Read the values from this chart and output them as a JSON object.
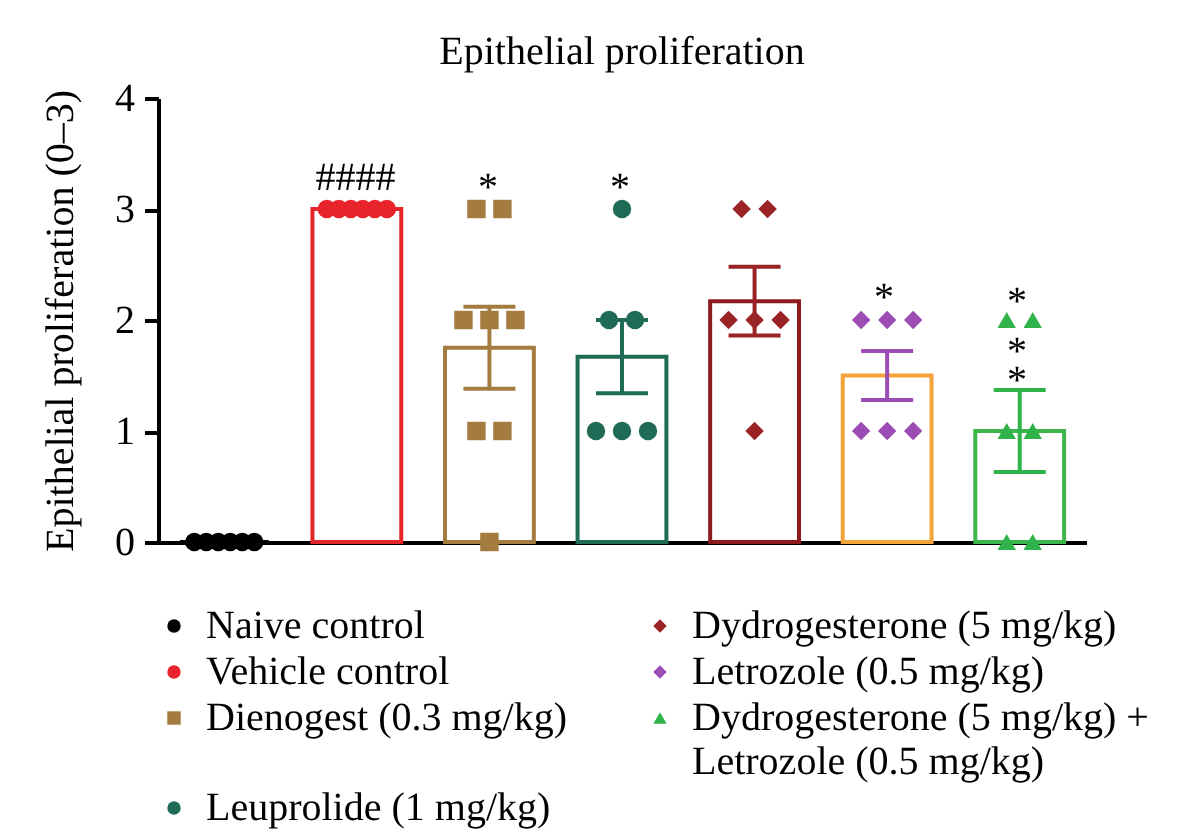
{
  "chart_data": {
    "type": "bar",
    "title": "Epithelial proliferation",
    "ylabel": "Epithelial proliferation (0–3)",
    "categories": [
      null,
      null,
      null,
      null,
      null,
      null,
      null
    ],
    "ylim": [
      0,
      4
    ],
    "yticks": [
      0,
      1,
      2,
      3,
      4
    ],
    "tick_labels": "y",
    "legend": "bottom",
    "series": [
      {
        "type": "bar",
        "values": [
          0,
          3,
          1.75,
          1.67,
          2.17,
          1.5,
          1.0
        ],
        "colors": [
          "#000000",
          "#e3262b",
          "#a47c3f",
          "#1f6b56",
          "#8e1b1e",
          "#f4a23a",
          "#3cb54a"
        ],
        "errors": [
          null,
          null,
          0.37,
          0.33,
          0.31,
          0.22,
          0.37
        ]
      },
      {
        "type": "scatter",
        "name": "Naive control",
        "marker": "circle",
        "color": "#000000",
        "values": [
          0,
          null,
          null,
          null,
          null,
          null,
          null
        ]
      },
      {
        "type": "scatter",
        "marker": "circle",
        "color": "#000000",
        "values": [
          0,
          null,
          null,
          null,
          null,
          null,
          null
        ]
      },
      {
        "type": "scatter",
        "marker": "circle",
        "color": "#000000",
        "values": [
          0,
          null,
          null,
          null,
          null,
          null,
          null
        ]
      },
      {
        "type": "scatter",
        "marker": "circle",
        "color": "#000000",
        "values": [
          0,
          null,
          null,
          null,
          null,
          null,
          null
        ]
      },
      {
        "type": "scatter",
        "marker": "circle",
        "color": "#000000",
        "values": [
          0,
          null,
          null,
          null,
          null,
          null,
          null
        ]
      },
      {
        "type": "scatter",
        "marker": "circle",
        "color": "#000000",
        "values": [
          0,
          null,
          null,
          null,
          null,
          null,
          null
        ]
      },
      {
        "type": "scatter",
        "name": "Vehicle control",
        "marker": "circle",
        "color": "#e8242a",
        "values": [
          null,
          3,
          null,
          null,
          null,
          null,
          null
        ]
      },
      {
        "type": "scatter",
        "marker": "circle",
        "color": "#e8242a",
        "values": [
          null,
          3,
          null,
          null,
          null,
          null,
          null
        ]
      },
      {
        "type": "scatter",
        "marker": "circle",
        "color": "#e8242a",
        "values": [
          null,
          3,
          null,
          null,
          null,
          null,
          null
        ]
      },
      {
        "type": "scatter",
        "marker": "circle",
        "color": "#e8242a",
        "values": [
          null,
          3,
          null,
          null,
          null,
          null,
          null
        ]
      },
      {
        "type": "scatter",
        "marker": "circle",
        "color": "#e8242a",
        "values": [
          null,
          3,
          null,
          null,
          null,
          null,
          null
        ]
      },
      {
        "type": "scatter",
        "marker": "circle",
        "color": "#e8242a",
        "values": [
          null,
          3,
          null,
          null,
          null,
          null,
          null
        ]
      },
      {
        "type": "scatter",
        "name": "Dienogest (0.3 mg/kg)",
        "marker": "square",
        "color": "#a47c3f",
        "values": [
          null,
          null,
          3,
          null,
          null,
          null,
          null
        ]
      },
      {
        "type": "scatter",
        "marker": "square",
        "color": "#a47c3f",
        "values": [
          null,
          null,
          3,
          null,
          null,
          null,
          null
        ]
      },
      {
        "type": "scatter",
        "marker": "square",
        "color": "#a47c3f",
        "values": [
          null,
          null,
          2,
          null,
          null,
          null,
          null
        ]
      },
      {
        "type": "scatter",
        "marker": "square",
        "color": "#a47c3f",
        "values": [
          null,
          null,
          2,
          null,
          null,
          null,
          null
        ]
      },
      {
        "type": "scatter",
        "marker": "square",
        "color": "#a47c3f",
        "values": [
          null,
          null,
          2,
          null,
          null,
          null,
          null
        ]
      },
      {
        "type": "scatter",
        "marker": "square",
        "color": "#a47c3f",
        "values": [
          null,
          null,
          1,
          null,
          null,
          null,
          null
        ]
      },
      {
        "type": "scatter",
        "marker": "square",
        "color": "#a47c3f",
        "values": [
          null,
          null,
          1,
          null,
          null,
          null,
          null
        ]
      },
      {
        "type": "scatter",
        "marker": "square",
        "color": "#a47c3f",
        "values": [
          null,
          null,
          0,
          null,
          null,
          null,
          null
        ]
      },
      {
        "type": "scatter",
        "name": "Leuprolide (1 mg/kg)",
        "marker": "circle",
        "color": "#1f6b56",
        "values": [
          null,
          null,
          null,
          3,
          null,
          null,
          null
        ]
      },
      {
        "type": "scatter",
        "marker": "circle",
        "color": "#1f6b56",
        "values": [
          null,
          null,
          null,
          2,
          null,
          null,
          null
        ]
      },
      {
        "type": "scatter",
        "marker": "circle",
        "color": "#1f6b56",
        "values": [
          null,
          null,
          null,
          2,
          null,
          null,
          null
        ]
      },
      {
        "type": "scatter",
        "marker": "circle",
        "color": "#1f6b56",
        "values": [
          null,
          null,
          null,
          1,
          null,
          null,
          null
        ]
      },
      {
        "type": "scatter",
        "marker": "circle",
        "color": "#1f6b56",
        "values": [
          null,
          null,
          null,
          1,
          null,
          null,
          null
        ]
      },
      {
        "type": "scatter",
        "marker": "circle",
        "color": "#1f6b56",
        "values": [
          null,
          null,
          null,
          1,
          null,
          null,
          null
        ]
      },
      {
        "type": "scatter",
        "name": "Dydrogesterone (5 mg/kg)",
        "marker": "diamond",
        "color": "#9a2326",
        "values": [
          null,
          null,
          null,
          null,
          3,
          null,
          null
        ]
      },
      {
        "type": "scatter",
        "marker": "diamond",
        "color": "#9a2326",
        "values": [
          null,
          null,
          null,
          null,
          3,
          null,
          null
        ]
      },
      {
        "type": "scatter",
        "marker": "diamond",
        "color": "#9a2326",
        "values": [
          null,
          null,
          null,
          null,
          2,
          null,
          null
        ]
      },
      {
        "type": "scatter",
        "marker": "diamond",
        "color": "#9a2326",
        "values": [
          null,
          null,
          null,
          null,
          2,
          null,
          null
        ]
      },
      {
        "type": "scatter",
        "marker": "diamond",
        "color": "#9a2326",
        "values": [
          null,
          null,
          null,
          null,
          2,
          null,
          null
        ]
      },
      {
        "type": "scatter",
        "marker": "diamond",
        "color": "#9a2326",
        "values": [
          null,
          null,
          null,
          null,
          1,
          null,
          null
        ]
      },
      {
        "type": "scatter",
        "name": "Letrozole (0.5 mg/kg)",
        "marker": "diamond",
        "color": "#9b4db3",
        "values": [
          null,
          null,
          null,
          null,
          null,
          2,
          null
        ]
      },
      {
        "type": "scatter",
        "marker": "diamond",
        "color": "#9b4db3",
        "values": [
          null,
          null,
          null,
          null,
          null,
          2,
          null
        ]
      },
      {
        "type": "scatter",
        "marker": "diamond",
        "color": "#9b4db3",
        "values": [
          null,
          null,
          null,
          null,
          null,
          2,
          null
        ]
      },
      {
        "type": "scatter",
        "marker": "diamond",
        "color": "#9b4db3",
        "values": [
          null,
          null,
          null,
          null,
          null,
          1,
          null
        ]
      },
      {
        "type": "scatter",
        "marker": "diamond",
        "color": "#9b4db3",
        "values": [
          null,
          null,
          null,
          null,
          null,
          1,
          null
        ]
      },
      {
        "type": "scatter",
        "marker": "diamond",
        "color": "#9b4db3",
        "values": [
          null,
          null,
          null,
          null,
          null,
          1,
          null
        ]
      },
      {
        "type": "scatter",
        "name": "Dydrogesterone (5 mg/kg) + Letrozole (0.5 mg/kg)",
        "marker": "triangle",
        "color": "#2fb34a",
        "values": [
          null,
          null,
          null,
          null,
          null,
          null,
          2
        ]
      },
      {
        "type": "scatter",
        "marker": "triangle",
        "color": "#2fb34a",
        "values": [
          null,
          null,
          null,
          null,
          null,
          null,
          2
        ]
      },
      {
        "type": "scatter",
        "marker": "triangle",
        "color": "#2fb34a",
        "values": [
          null,
          null,
          null,
          null,
          null,
          null,
          1
        ]
      },
      {
        "type": "scatter",
        "marker": "triangle",
        "color": "#2fb34a",
        "values": [
          null,
          null,
          null,
          null,
          null,
          null,
          1
        ]
      },
      {
        "type": "scatter",
        "marker": "triangle",
        "color": "#2fb34a",
        "values": [
          null,
          null,
          null,
          null,
          null,
          null,
          0
        ]
      },
      {
        "type": "scatter",
        "marker": "triangle",
        "color": "#2fb34a",
        "values": [
          null,
          null,
          null,
          null,
          null,
          null,
          0
        ]
      }
    ],
    "annotations": [
      "####",
      "*",
      "*",
      "*",
      "*",
      "*",
      "*"
    ]
  }
}
